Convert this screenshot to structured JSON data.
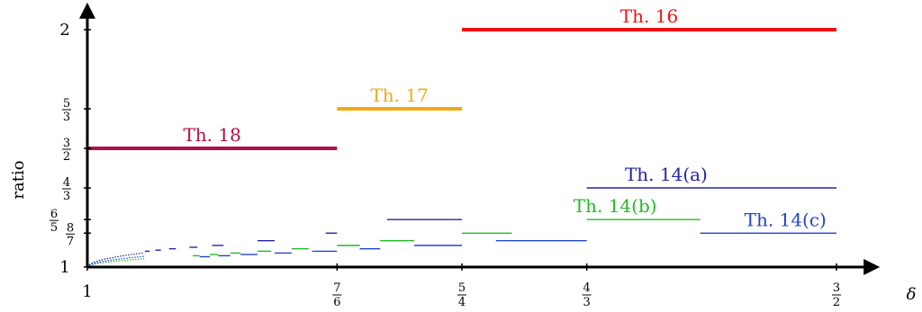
{
  "chart_data": {
    "type": "line",
    "title": "",
    "xlabel": "δ",
    "ylabel": "ratio",
    "xlim": [
      1.0,
      1.5
    ],
    "ylim": [
      1.0,
      2.0
    ],
    "x_ticks": [
      {
        "value": 1.0,
        "num": "1",
        "den": ""
      },
      {
        "value": 1.16667,
        "num": "7",
        "den": "6"
      },
      {
        "value": 1.25,
        "num": "5",
        "den": "4"
      },
      {
        "value": 1.33333,
        "num": "4",
        "den": "3"
      },
      {
        "value": 1.5,
        "num": "3",
        "den": "2"
      }
    ],
    "y_ticks": [
      {
        "value": 1.0,
        "num": "1",
        "den": ""
      },
      {
        "value": 1.14286,
        "num": "8",
        "den": "7"
      },
      {
        "value": 1.2,
        "num": "6",
        "den": "5"
      },
      {
        "value": 1.33333,
        "num": "4",
        "den": "3"
      },
      {
        "value": 1.5,
        "num": "3",
        "den": "2"
      },
      {
        "value": 1.66667,
        "num": "5",
        "den": "3"
      },
      {
        "value": 2.0,
        "num": "2",
        "den": ""
      }
    ],
    "series": [
      {
        "name": "Th. 16",
        "color": "#ee1111",
        "segments": [
          [
            1.25,
            1.5,
            2.0
          ]
        ]
      },
      {
        "name": "Th. 17",
        "color": "#f2aa14",
        "segments": [
          [
            1.16667,
            1.25,
            1.66667
          ]
        ]
      },
      {
        "name": "Th. 18",
        "color": "#b0104a",
        "segments": [
          [
            1.0,
            1.16667,
            1.5
          ]
        ]
      },
      {
        "name": "Th. 14(a)",
        "color": "#2222aa",
        "segments": [
          [
            1.33333,
            1.5,
            1.33333
          ],
          [
            1.2,
            1.25,
            1.2
          ],
          [
            1.15909,
            1.16667,
            1.14286
          ],
          [
            1.11364,
            1.125,
            1.11111
          ],
          [
            1.08333,
            1.09091,
            1.09091
          ],
          [
            1.06818,
            1.07353,
            1.08333
          ],
          [
            1.05455,
            1.05909,
            1.07692
          ],
          [
            1.04545,
            1.04909,
            1.07143
          ],
          [
            1.03846,
            1.04167,
            1.06667
          ]
        ]
      },
      {
        "name": "Th. 14(b)",
        "color": "#22bb22",
        "segments": [
          [
            1.33333,
            1.40909,
            1.2
          ],
          [
            1.25,
            1.28333,
            1.14286
          ],
          [
            1.19545,
            1.21818,
            1.11111
          ],
          [
            1.16667,
            1.18182,
            1.09091
          ],
          [
            1.13636,
            1.14773,
            1.07692
          ],
          [
            1.11364,
            1.12273,
            1.06667
          ],
          [
            1.09545,
            1.10227,
            1.05882
          ],
          [
            1.08182,
            1.08727,
            1.05263
          ],
          [
            1.07045,
            1.075,
            1.04762
          ]
        ]
      },
      {
        "name": "Th. 14(c)",
        "color": "#2244cc",
        "segments": [
          [
            1.40909,
            1.5,
            1.14286
          ],
          [
            1.27273,
            1.33333,
            1.11111
          ],
          [
            1.21818,
            1.25,
            1.09091
          ],
          [
            1.18182,
            1.19545,
            1.07692
          ],
          [
            1.15,
            1.16667,
            1.06667
          ],
          [
            1.125,
            1.13636,
            1.05882
          ],
          [
            1.10227,
            1.11364,
            1.05263
          ],
          [
            1.08727,
            1.09545,
            1.04762
          ],
          [
            1.075,
            1.08182,
            1.04348
          ]
        ]
      }
    ],
    "series_labels": [
      {
        "text": "Th. 16",
        "x": 1.375,
        "y": 2.0
      },
      {
        "text": "Th. 17",
        "x": 1.20833,
        "y": 1.66667
      },
      {
        "text": "Th. 18",
        "x": 1.08333,
        "y": 1.5
      },
      {
        "text": "Th. 14(a)",
        "x": 1.38636,
        "y": 1.33333
      },
      {
        "text": "Th. 14(b)",
        "x": 1.35227,
        "y": 1.2
      },
      {
        "text": "Th. 14(c)",
        "x": 1.46591,
        "y": 1.14286
      }
    ],
    "grid": false
  }
}
